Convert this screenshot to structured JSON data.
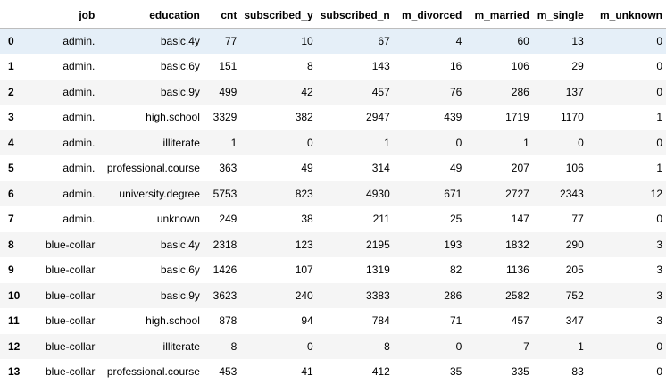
{
  "table": {
    "columns": [
      "",
      "job",
      "education",
      "cnt",
      "subscribed_y",
      "subscribed_n",
      "m_divorced",
      "m_married",
      "m_single",
      "m_unknown"
    ],
    "rows": [
      [
        "0",
        "admin.",
        "basic.4y",
        "77",
        "10",
        "67",
        "4",
        "60",
        "13",
        "0"
      ],
      [
        "1",
        "admin.",
        "basic.6y",
        "151",
        "8",
        "143",
        "16",
        "106",
        "29",
        "0"
      ],
      [
        "2",
        "admin.",
        "basic.9y",
        "499",
        "42",
        "457",
        "76",
        "286",
        "137",
        "0"
      ],
      [
        "3",
        "admin.",
        "high.school",
        "3329",
        "382",
        "2947",
        "439",
        "1719",
        "1170",
        "1"
      ],
      [
        "4",
        "admin.",
        "illiterate",
        "1",
        "0",
        "1",
        "0",
        "1",
        "0",
        "0"
      ],
      [
        "5",
        "admin.",
        "professional.course",
        "363",
        "49",
        "314",
        "49",
        "207",
        "106",
        "1"
      ],
      [
        "6",
        "admin.",
        "university.degree",
        "5753",
        "823",
        "4930",
        "671",
        "2727",
        "2343",
        "12"
      ],
      [
        "7",
        "admin.",
        "unknown",
        "249",
        "38",
        "211",
        "25",
        "147",
        "77",
        "0"
      ],
      [
        "8",
        "blue-collar",
        "basic.4y",
        "2318",
        "123",
        "2195",
        "193",
        "1832",
        "290",
        "3"
      ],
      [
        "9",
        "blue-collar",
        "basic.6y",
        "1426",
        "107",
        "1319",
        "82",
        "1136",
        "205",
        "3"
      ],
      [
        "10",
        "blue-collar",
        "basic.9y",
        "3623",
        "240",
        "3383",
        "286",
        "2582",
        "752",
        "3"
      ],
      [
        "11",
        "blue-collar",
        "high.school",
        "878",
        "94",
        "784",
        "71",
        "457",
        "347",
        "3"
      ],
      [
        "12",
        "blue-collar",
        "illiterate",
        "8",
        "0",
        "8",
        "0",
        "7",
        "1",
        "0"
      ],
      [
        "13",
        "blue-collar",
        "professional.course",
        "453",
        "41",
        "412",
        "35",
        "335",
        "83",
        "0"
      ]
    ]
  },
  "colors": {
    "stripe": "#f5f5f5",
    "selected_row": "#e5eff8",
    "header_border": "#bdbdbd"
  }
}
